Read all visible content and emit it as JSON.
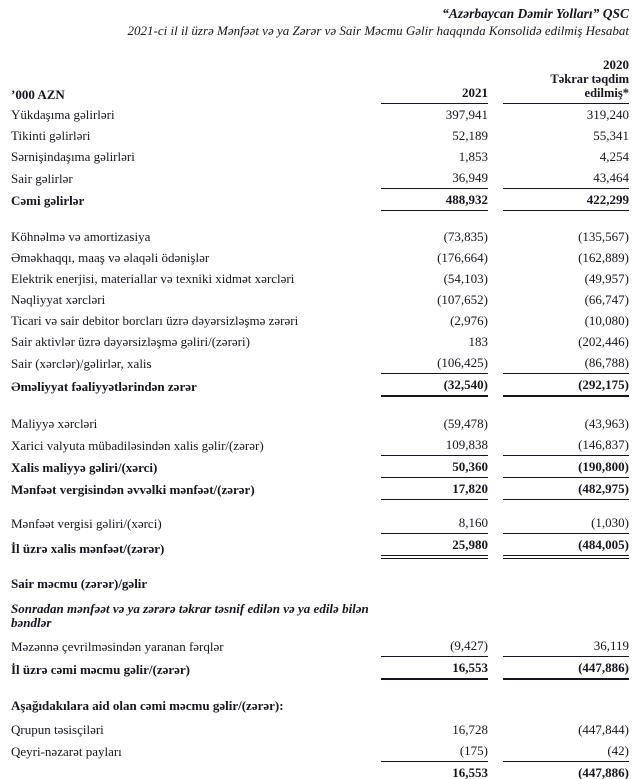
{
  "header": {
    "company": "“Azərbaycan Dəmir Yolları” QSC",
    "subtitle": "2021-ci il il üzrə Mənfəət və ya Zərər və Sair Məcmu Gəlir haqqında Konsolidə edilmiş Hesabat",
    "unit_label": "’000 AZN",
    "col1": "2021",
    "col2": "2020",
    "col2_note": "Təkrar təqdim edilmiş*"
  },
  "rows": [
    {
      "label": "Yükdaşıma gəlirləri",
      "v2021": "397,941",
      "v2020": "319,240"
    },
    {
      "label": "Tikinti gəlirləri",
      "v2021": "52,189",
      "v2020": "55,341"
    },
    {
      "label": "Sərnişindaşıma gəlirləri",
      "v2021": "1,853",
      "v2020": "4,254"
    },
    {
      "label": "Sair gəlirlər",
      "v2021": "36,949",
      "v2020": "43,464",
      "rule": "s"
    },
    {
      "label": "Cəmi gəlirlər",
      "v2021": "488,932",
      "v2020": "422,299",
      "bold": true,
      "rule": "s"
    },
    {
      "label": "Köhnəlmə və amortizasiya",
      "v2021": "(73,835)",
      "v2020": "(135,567)",
      "gap": 15
    },
    {
      "label": "Əməkhaqqı, maaş və əlaqəli ödənişlər",
      "v2021": "(176,664)",
      "v2020": "(162,889)"
    },
    {
      "label": "Elektrik enerjisi, materiallar və texniki xidmət xərcləri",
      "v2021": "(54,103)",
      "v2020": "(49,957)"
    },
    {
      "label": "Nəqliyyat xərcləri",
      "v2021": "(107,652)",
      "v2020": "(66,747)"
    },
    {
      "label": "Ticari və sair debitor borcları üzrə dəyərsizləşmə zərəri",
      "v2021": "(2,976)",
      "v2020": "(10,080)"
    },
    {
      "label": "Sair aktivlər üzrə dəyərsizləşmə gəliri/(zərəri)",
      "v2021": "183",
      "v2020": "(202,446)"
    },
    {
      "label": "Sair (xərclər)/gəlirlər, xalis",
      "v2021": "(106,425)",
      "v2020": "(86,788)",
      "rule": "s"
    },
    {
      "label": "Əməliyyat fəaliyyətlərindən zərər",
      "v2021": "(32,540)",
      "v2020": "(292,175)",
      "bold": true,
      "rule": "t"
    },
    {
      "label": "Maliyyə xərcləri",
      "v2021": "(59,478)",
      "v2020": "(43,963)",
      "gap": 16
    },
    {
      "label": "Xarici valyuta mübadiləsindən xalis gəlir/(zərər)",
      "v2021": "109,838",
      "v2020": "(146,837)",
      "rule": "s"
    },
    {
      "label": "Xalis maliyyə gəliri/(xərci)",
      "v2021": "50,360",
      "v2020": "(190,800)",
      "bold": true,
      "rule": "s"
    },
    {
      "label": "Mənfəət vergisindən əvvəlki mənfəət/(zərər)",
      "v2021": "17,820",
      "v2020": "(482,975)",
      "bold": true,
      "rule": "s"
    },
    {
      "label": "Mənfəət vergisi gəliri/(xərci)",
      "v2021": "8,160",
      "v2020": "(1,030)",
      "rule": "s",
      "gap": 12
    },
    {
      "label": "İl üzrə xalis mənfəət/(zərər)",
      "v2021": "25,980",
      "v2020": "(484,005)",
      "bold": true,
      "rule": "d"
    },
    {
      "label": "Sair məcmu (zərər)/gəlir",
      "v2021": "",
      "v2020": "",
      "bold": true,
      "section": true,
      "gap": 14
    },
    {
      "label": "Sonradan mənfəət və ya zərərə təkrar təsnif edilən və ya edilə bilən bəndlər",
      "v2021": "",
      "v2020": "",
      "bold": true,
      "italic": true,
      "section": true,
      "gap": 4
    },
    {
      "label": "Məzənnə çevrilməsindən yaranan fərqlər",
      "v2021": "(9,427)",
      "v2020": "36,119",
      "rule": "s",
      "gap": 2
    },
    {
      "label": "İl üzrə cəmi məcmu gəlir/(zərər)",
      "v2021": "16,553",
      "v2020": "(447,886)",
      "bold": true,
      "rule": "t"
    },
    {
      "label": "Aşağıdakılara aid olan cəmi məcmu gəlir/(zərər):",
      "v2021": "",
      "v2020": "",
      "bold": true,
      "section": true,
      "gap": 15
    },
    {
      "label": "Qrupun təsisçiləri",
      "v2021": "16,728",
      "v2020": "(447,844)",
      "gap": 3
    },
    {
      "label": "Qeyri-nəzarət payları",
      "v2021": "(175)",
      "v2020": "(42)",
      "rule": "s"
    },
    {
      "label": "",
      "v2021": "16,553",
      "v2020": "(447,886)",
      "bold": true,
      "rule": "t"
    }
  ]
}
